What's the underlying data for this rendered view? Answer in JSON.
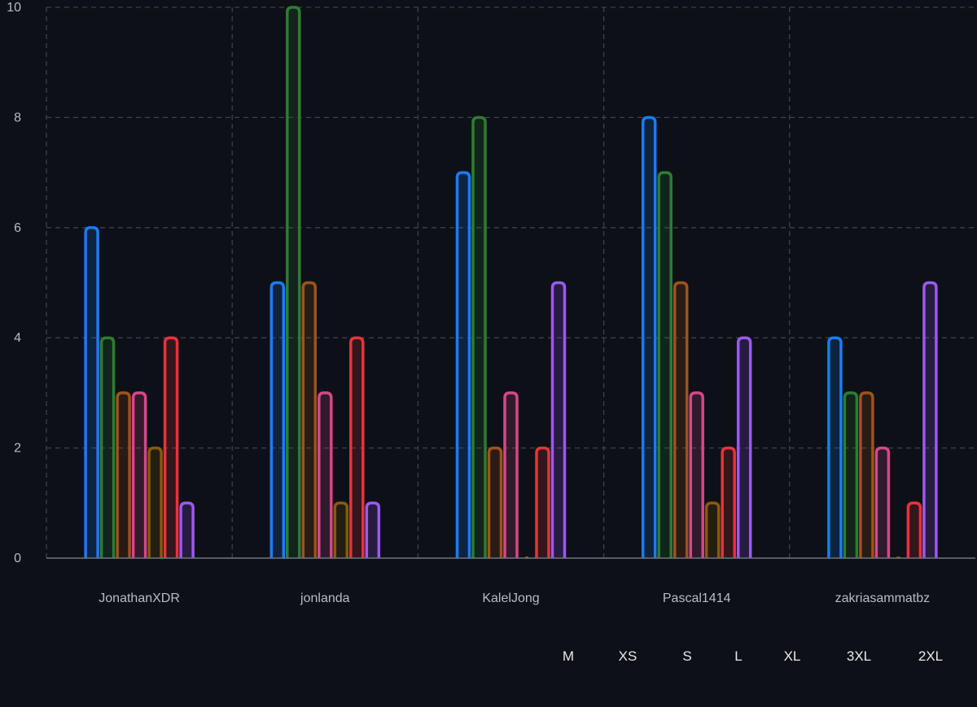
{
  "chart_data": {
    "type": "bar",
    "categories": [
      "JonathanXDR",
      "jonlanda",
      "KalelJong",
      "Pascal1414",
      "zakriasammatbz"
    ],
    "series": [
      {
        "name": "M",
        "color": "#1a7cf5",
        "values": [
          6,
          5,
          7,
          8,
          4
        ]
      },
      {
        "name": "XS",
        "color": "#2e7d32",
        "values": [
          4,
          10,
          8,
          7,
          3
        ]
      },
      {
        "name": "S",
        "color": "#a0521c",
        "values": [
          3,
          5,
          2,
          5,
          3
        ]
      },
      {
        "name": "L",
        "color": "#d6478a",
        "values": [
          3,
          3,
          3,
          3,
          2
        ]
      },
      {
        "name": "XL",
        "color": "#8a5a0a",
        "values": [
          2,
          1,
          0,
          1,
          0
        ]
      },
      {
        "name": "3XL",
        "color": "#e8323c",
        "values": [
          4,
          4,
          2,
          2,
          1
        ]
      },
      {
        "name": "2XL",
        "color": "#9b59f0",
        "values": [
          1,
          1,
          5,
          4,
          5
        ]
      }
    ],
    "ylim": [
      0,
      10
    ],
    "yticks": [
      0,
      2,
      4,
      6,
      8,
      10
    ],
    "xlabel": "",
    "ylabel": "",
    "grid": true,
    "legend_position": "bottom-right"
  }
}
